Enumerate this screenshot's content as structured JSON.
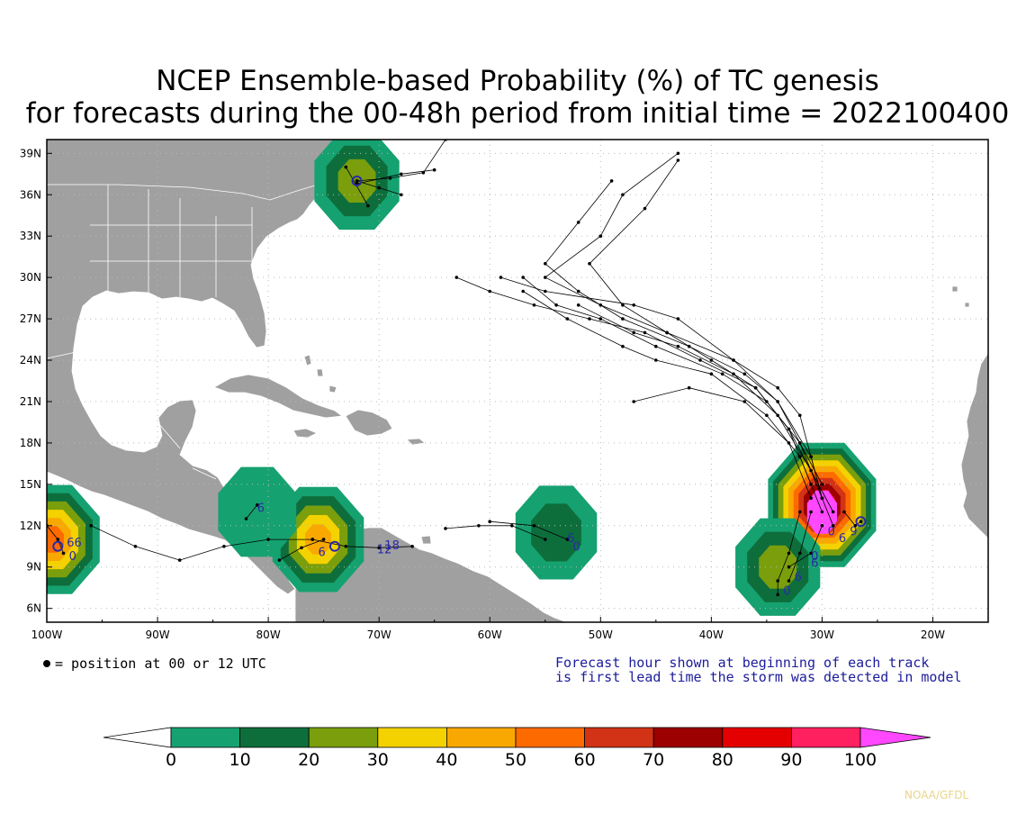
{
  "title_line1": "NCEP Ensemble-based Probability (%) of TC genesis",
  "title_line2": "for forecasts during the 00-48h period from initial time = 2022100400",
  "map": {
    "lon_range": [
      -100,
      -15
    ],
    "lat_range": [
      5,
      40
    ],
    "lon_ticks": [
      {
        "value": -100,
        "label": "100W"
      },
      {
        "value": -90,
        "label": "90W"
      },
      {
        "value": -80,
        "label": "80W"
      },
      {
        "value": -70,
        "label": "70W"
      },
      {
        "value": -60,
        "label": "60W"
      },
      {
        "value": -50,
        "label": "50W"
      },
      {
        "value": -40,
        "label": "40W"
      },
      {
        "value": -30,
        "label": "30W"
      },
      {
        "value": -20,
        "label": "20W"
      }
    ],
    "lat_ticks": [
      {
        "value": 6,
        "label": "6N"
      },
      {
        "value": 9,
        "label": "9N"
      },
      {
        "value": 12,
        "label": "12N"
      },
      {
        "value": 15,
        "label": "15N"
      },
      {
        "value": 18,
        "label": "18N"
      },
      {
        "value": 21,
        "label": "21N"
      },
      {
        "value": 24,
        "label": "24N"
      },
      {
        "value": 27,
        "label": "27N"
      },
      {
        "value": 30,
        "label": "30N"
      },
      {
        "value": 33,
        "label": "33N"
      },
      {
        "value": 36,
        "label": "36N"
      },
      {
        "value": 39,
        "label": "39N"
      }
    ],
    "grid": "dotted",
    "land_color": "#a0a0a0",
    "ocean_color": "#ffffff"
  },
  "genesis_areas": [
    {
      "name": "east-atlantic",
      "lon": -30,
      "lat": 13.5,
      "peak": 100
    },
    {
      "name": "east-atlantic-south",
      "lon": -34,
      "lat": 9,
      "peak": 30
    },
    {
      "name": "central-atlantic",
      "lon": -54,
      "lat": 11.5,
      "peak": 20
    },
    {
      "name": "southern-caribbean",
      "lon": -75.5,
      "lat": 11,
      "peak": 50
    },
    {
      "name": "western-caribbean",
      "lon": -81,
      "lat": 13,
      "peak": 10
    },
    {
      "name": "eastern-pacific",
      "lon": -99.5,
      "lat": 11,
      "peak": 60
    },
    {
      "name": "mid-atlantic-coast",
      "lon": -72,
      "lat": 37,
      "peak": 30
    }
  ],
  "lead_time_labels": [
    {
      "text": "6",
      "lon": -81,
      "lat": 13
    },
    {
      "text": "6",
      "lon": -53,
      "lat": 10.8
    },
    {
      "text": "0",
      "lon": -52.5,
      "lat": 10.2
    },
    {
      "text": "6",
      "lon": -75.5,
      "lat": 9.8
    },
    {
      "text": "12",
      "lon": -70.2,
      "lat": 10
    },
    {
      "text": "18",
      "lon": -69.5,
      "lat": 10.3
    },
    {
      "text": "66",
      "lon": -98.2,
      "lat": 10.5
    },
    {
      "text": "0",
      "lon": -98,
      "lat": 9.5
    },
    {
      "text": "0",
      "lon": -33.5,
      "lat": 7
    },
    {
      "text": "6",
      "lon": -32.5,
      "lat": 8
    },
    {
      "text": "0",
      "lon": -31,
      "lat": 9.5
    },
    {
      "text": "6",
      "lon": -31,
      "lat": 9
    },
    {
      "text": "0",
      "lon": -29.5,
      "lat": 11.3
    },
    {
      "text": "6",
      "lon": -28.5,
      "lat": 10.8
    },
    {
      "text": "9",
      "lon": -27.5,
      "lat": 11.3
    }
  ],
  "colorbar": {
    "labels": [
      "0",
      "10",
      "20",
      "30",
      "40",
      "50",
      "60",
      "70",
      "80",
      "90",
      "100"
    ],
    "colors": [
      "#16a170",
      "#0d6e3c",
      "#7a9e0c",
      "#f4d200",
      "#f8a800",
      "#fd6a00",
      "#d23216",
      "#9c0000",
      "#e40000",
      "#ff2060"
    ],
    "below_color": "#ffffff",
    "above_color": "#ff48ff"
  },
  "legend_note": "= position at 00 or 12 UTC",
  "forecast_note_line1": "Forecast hour shown at beginning of each track",
  "forecast_note_line2": "is first lead time the storm was detected in model",
  "credit": "NOAA/GFDL"
}
